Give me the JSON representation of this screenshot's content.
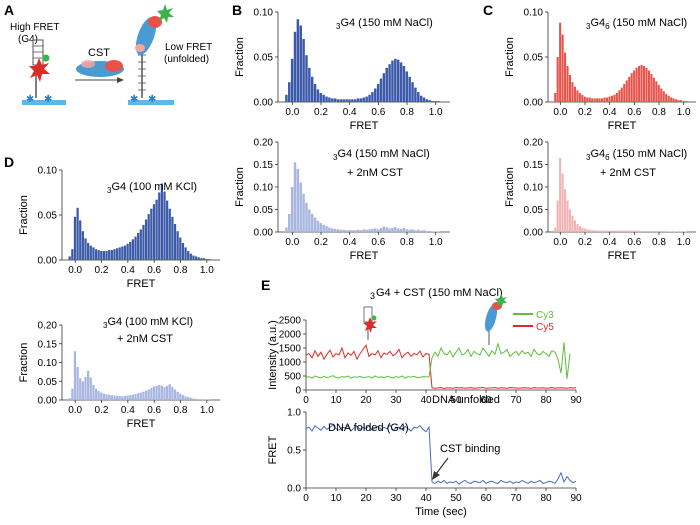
{
  "colors": {
    "blue": "#3d5aa8",
    "blue_light": "#a9b6e0",
    "red": "#e8524a",
    "red_light": "#f3b3b3",
    "cy3": "#5fbf3a",
    "cy5": "#e02a2a",
    "fret_trace": "#4a6bc4",
    "axis": "#333333",
    "arrow": "#333333"
  },
  "panel_A": {
    "letter": "A",
    "high_fret_label": [
      "High FRET",
      "(G4)"
    ],
    "protein_label": "CST",
    "low_fret_label": [
      "Low FRET",
      "(unfolded)"
    ]
  },
  "panel_E": {
    "letter": "E",
    "title_pre": "3",
    "title_main": "G4 + CST (150 mM NaCl)",
    "legend": [
      "Cy3",
      "Cy5"
    ],
    "annotations": {
      "folded": "DNA folded (G4)",
      "unfolded": "DNA unfolded",
      "binding": "CST binding"
    }
  },
  "chart_data": [
    {
      "id": "B_top",
      "panel": "B",
      "type": "bar",
      "title_sub": "3",
      "title_main": "G4 (150 mM NaCl)",
      "title_sup": "",
      "xlabel": "FRET",
      "ylabel": "Fraction",
      "xlim": [
        -0.1,
        1.1
      ],
      "ylim": [
        0,
        0.1
      ],
      "xticks": [
        0.0,
        0.2,
        0.4,
        0.6,
        0.8,
        1.0
      ],
      "yticks": [
        0.0,
        0.05,
        0.1
      ],
      "ytick_labels": [
        "0.00",
        "0.05",
        "0.10"
      ],
      "color": "blue",
      "bin_start": -0.05,
      "bin_width": 0.02,
      "values": [
        0.008,
        0.022,
        0.048,
        0.078,
        0.092,
        0.085,
        0.07,
        0.052,
        0.038,
        0.028,
        0.02,
        0.014,
        0.01,
        0.008,
        0.006,
        0.005,
        0.004,
        0.004,
        0.003,
        0.003,
        0.003,
        0.003,
        0.003,
        0.003,
        0.003,
        0.004,
        0.004,
        0.005,
        0.006,
        0.008,
        0.011,
        0.015,
        0.02,
        0.026,
        0.032,
        0.038,
        0.042,
        0.046,
        0.048,
        0.047,
        0.044,
        0.04,
        0.034,
        0.028,
        0.022,
        0.016,
        0.011,
        0.007,
        0.005,
        0.003,
        0.002,
        0.001,
        0.001,
        0.001,
        0.0
      ]
    },
    {
      "id": "B_bottom",
      "panel": "B",
      "type": "bar",
      "title_sub": "3",
      "title_main": "G4 (150 mM NaCl)",
      "title_sup": "",
      "subtitle": "+ 2nM CST",
      "xlabel": "FRET",
      "ylabel": "Fraction",
      "xlim": [
        -0.1,
        1.1
      ],
      "ylim": [
        0,
        0.2
      ],
      "xticks": [
        0.0,
        0.2,
        0.4,
        0.6,
        0.8,
        1.0
      ],
      "yticks": [
        0.0,
        0.05,
        0.1,
        0.15,
        0.2
      ],
      "ytick_labels": [
        "0.00",
        "0.05",
        "0.10",
        "0.15",
        "0.20"
      ],
      "color": "blue_light",
      "bin_start": -0.05,
      "bin_width": 0.02,
      "values": [
        0.01,
        0.04,
        0.1,
        0.155,
        0.14,
        0.11,
        0.085,
        0.065,
        0.05,
        0.04,
        0.032,
        0.025,
        0.02,
        0.016,
        0.013,
        0.01,
        0.008,
        0.007,
        0.006,
        0.005,
        0.005,
        0.004,
        0.004,
        0.004,
        0.004,
        0.005,
        0.004,
        0.006,
        0.005,
        0.006,
        0.007,
        0.008,
        0.006,
        0.009,
        0.012,
        0.01,
        0.008,
        0.009,
        0.011,
        0.008,
        0.007,
        0.009,
        0.006,
        0.005,
        0.006,
        0.004,
        0.005,
        0.003,
        0.004,
        0.002,
        0.002,
        0.001,
        0.001,
        0.001,
        0.0
      ]
    },
    {
      "id": "C_top",
      "panel": "C",
      "type": "bar",
      "title_sub": "3",
      "title_main": "G4",
      "title_sup": "6",
      "title_rest": " (150 mM NaCl)",
      "xlabel": "FRET",
      "ylabel": "Fraction",
      "xlim": [
        -0.1,
        1.1
      ],
      "ylim": [
        0,
        0.1
      ],
      "xticks": [
        0.0,
        0.2,
        0.4,
        0.6,
        0.8,
        1.0
      ],
      "yticks": [
        0.0,
        0.05,
        0.1
      ],
      "ytick_labels": [
        "0.00",
        "0.05",
        "0.10"
      ],
      "color": "red",
      "bin_start": -0.05,
      "bin_width": 0.02,
      "values": [
        0.01,
        0.05,
        0.088,
        0.075,
        0.055,
        0.04,
        0.03,
        0.022,
        0.017,
        0.013,
        0.01,
        0.008,
        0.006,
        0.005,
        0.005,
        0.004,
        0.004,
        0.004,
        0.004,
        0.004,
        0.005,
        0.005,
        0.006,
        0.007,
        0.008,
        0.01,
        0.013,
        0.016,
        0.02,
        0.024,
        0.028,
        0.032,
        0.035,
        0.038,
        0.04,
        0.041,
        0.04,
        0.038,
        0.035,
        0.031,
        0.027,
        0.023,
        0.019,
        0.015,
        0.012,
        0.009,
        0.007,
        0.005,
        0.004,
        0.003,
        0.002,
        0.002,
        0.001,
        0.001,
        0.0
      ]
    },
    {
      "id": "C_bottom",
      "panel": "C",
      "type": "bar",
      "title_sub": "3",
      "title_main": "G4",
      "title_sup": "6",
      "title_rest": " (150 mM NaCl)",
      "subtitle": "+ 2nM CST",
      "xlabel": "FRET",
      "ylabel": "Fraction",
      "xlim": [
        -0.1,
        1.1
      ],
      "ylim": [
        0,
        0.2
      ],
      "xticks": [
        0.0,
        0.2,
        0.4,
        0.6,
        0.8,
        1.0
      ],
      "yticks": [
        0.0,
        0.05,
        0.1,
        0.15,
        0.2
      ],
      "ytick_labels": [
        "0.00",
        "0.05",
        "0.10",
        "0.15",
        "0.20"
      ],
      "color": "red_light",
      "bin_start": -0.05,
      "bin_width": 0.02,
      "values": [
        0.01,
        0.07,
        0.165,
        0.13,
        0.095,
        0.07,
        0.05,
        0.036,
        0.026,
        0.018,
        0.013,
        0.01,
        0.008,
        0.006,
        0.005,
        0.004,
        0.004,
        0.003,
        0.003,
        0.003,
        0.003,
        0.003,
        0.003,
        0.003,
        0.003,
        0.003,
        0.003,
        0.003,
        0.003,
        0.003,
        0.003,
        0.003,
        0.003,
        0.003,
        0.003,
        0.002,
        0.002,
        0.002,
        0.002,
        0.002,
        0.002,
        0.002,
        0.002,
        0.002,
        0.002,
        0.001,
        0.001,
        0.001,
        0.001,
        0.001,
        0.001,
        0.001,
        0.001,
        0.001,
        0.0
      ]
    },
    {
      "id": "D_top",
      "panel": "D",
      "type": "bar",
      "title_sub": "3",
      "title_main": "G4 (100 mM KCl)",
      "title_sup": "",
      "xlabel": "FRET",
      "ylabel": "Fraction",
      "xlim": [
        -0.1,
        1.1
      ],
      "ylim": [
        0,
        0.1
      ],
      "xticks": [
        0.0,
        0.2,
        0.4,
        0.6,
        0.8,
        1.0
      ],
      "yticks": [
        0.0,
        0.05,
        0.1
      ],
      "ytick_labels": [
        "0.00",
        "0.05",
        "0.10"
      ],
      "color": "blue",
      "bin_start": -0.05,
      "bin_width": 0.02,
      "values": [
        0.004,
        0.012,
        0.048,
        0.058,
        0.044,
        0.032,
        0.024,
        0.019,
        0.016,
        0.014,
        0.012,
        0.011,
        0.01,
        0.01,
        0.01,
        0.011,
        0.011,
        0.012,
        0.013,
        0.014,
        0.015,
        0.016,
        0.018,
        0.02,
        0.023,
        0.026,
        0.03,
        0.034,
        0.039,
        0.045,
        0.051,
        0.057,
        0.062,
        0.067,
        0.075,
        0.085,
        0.076,
        0.066,
        0.057,
        0.048,
        0.04,
        0.032,
        0.025,
        0.019,
        0.014,
        0.01,
        0.007,
        0.005,
        0.004,
        0.003,
        0.002,
        0.002,
        0.001,
        0.001,
        0.0
      ]
    },
    {
      "id": "D_bottom",
      "panel": "D",
      "type": "bar",
      "title_sub": "3",
      "title_main": "G4 (100 mM KCl)",
      "title_sup": "",
      "subtitle": "+ 2nM CST",
      "xlabel": "FRET",
      "ylabel": "Fraction",
      "xlim": [
        -0.1,
        1.1
      ],
      "ylim": [
        0,
        0.2
      ],
      "xticks": [
        0.0,
        0.2,
        0.4,
        0.6,
        0.8,
        1.0
      ],
      "yticks": [
        0.0,
        0.05,
        0.1,
        0.15,
        0.2
      ],
      "ytick_labels": [
        "0.00",
        "0.05",
        "0.10",
        "0.15",
        "0.20"
      ],
      "color": "blue_light",
      "bin_start": -0.05,
      "bin_width": 0.02,
      "values": [
        0.005,
        0.03,
        0.13,
        0.088,
        0.058,
        0.05,
        0.062,
        0.078,
        0.06,
        0.04,
        0.03,
        0.024,
        0.02,
        0.017,
        0.015,
        0.014,
        0.013,
        0.012,
        0.011,
        0.011,
        0.01,
        0.011,
        0.012,
        0.013,
        0.014,
        0.016,
        0.018,
        0.02,
        0.022,
        0.025,
        0.028,
        0.032,
        0.036,
        0.038,
        0.04,
        0.038,
        0.035,
        0.038,
        0.042,
        0.035,
        0.028,
        0.022,
        0.017,
        0.013,
        0.01,
        0.008,
        0.006,
        0.004,
        0.003,
        0.002,
        0.002,
        0.001,
        0.001,
        0.001,
        0.0
      ]
    },
    {
      "id": "E_intensity",
      "panel": "E",
      "type": "line",
      "xlabel": "",
      "ylabel": "Intensity (a.u.)",
      "xlim": [
        0,
        90
      ],
      "ylim": [
        0,
        2500
      ],
      "xticks": [
        0,
        10,
        20,
        30,
        40,
        50,
        60,
        70,
        80,
        90
      ],
      "yticks": [
        0,
        500,
        1000,
        1500,
        2000,
        2500
      ],
      "x_start": 0,
      "x_step": 1,
      "series": [
        {
          "name": "Cy5",
          "color": "cy5",
          "values": [
            1250,
            1300,
            1150,
            1400,
            1200,
            1350,
            1100,
            1280,
            1420,
            1180,
            1300,
            1250,
            1500,
            1150,
            1320,
            1240,
            1380,
            1100,
            1290,
            1450,
            1600,
            1200,
            1300,
            1250,
            1400,
            1150,
            1320,
            1270,
            1380,
            1220,
            1300,
            1450,
            1150,
            1280,
            1350,
            1200,
            1300,
            1260,
            1390,
            1180,
            1300,
            1280,
            80,
            60,
            70,
            90,
            50,
            80,
            70,
            60,
            90,
            70,
            80,
            60,
            75,
            85,
            65,
            70,
            80,
            90,
            60,
            70,
            75,
            85,
            65,
            80,
            70,
            60,
            90,
            80,
            70,
            65,
            75,
            80,
            70,
            60,
            85,
            75,
            70,
            80,
            60,
            70,
            90,
            65,
            75,
            80,
            70,
            60,
            85,
            70,
            80
          ]
        },
        {
          "name": "Cy3",
          "color": "cy3",
          "values": [
            450,
            480,
            420,
            500,
            460,
            430,
            490,
            440,
            470,
            510,
            450,
            430,
            480,
            460,
            500,
            420,
            470,
            450,
            490,
            440,
            460,
            480,
            430,
            500,
            450,
            470,
            440,
            490,
            460,
            430,
            480,
            450,
            500,
            420,
            470,
            460,
            490,
            440,
            450,
            480,
            470,
            460,
            1150,
            1350,
            1200,
            1500,
            1300,
            1250,
            1400,
            1180,
            1350,
            1500,
            1250,
            1300,
            1450,
            1200,
            1380,
            1300,
            1250,
            1500,
            1350,
            1200,
            1400,
            1280,
            1650,
            1300,
            1350,
            1450,
            1200,
            1300,
            1380,
            1250,
            1400,
            1300,
            1350,
            1200,
            1450,
            1300,
            1250,
            1380,
            1300,
            1200,
            1400,
            1350,
            1100,
            600,
            1700,
            400,
            1300
          ]
        }
      ],
      "legend": [
        "Cy3",
        "Cy5"
      ]
    },
    {
      "id": "E_fret",
      "panel": "E",
      "type": "line",
      "xlabel": "Time (sec)",
      "ylabel": "FRET",
      "xlim": [
        0,
        90
      ],
      "ylim": [
        0,
        1.0
      ],
      "xticks": [
        0,
        10,
        20,
        30,
        40,
        50,
        60,
        70,
        80,
        90
      ],
      "yticks": [
        0.0,
        0.5,
        1.0
      ],
      "ytick_labels": [
        "0.0",
        "0.5",
        "1.0"
      ],
      "x_start": 0,
      "x_step": 1,
      "series": [
        {
          "name": "FRET",
          "color": "fret_trace",
          "values": [
            0.78,
            0.8,
            0.75,
            0.82,
            0.79,
            0.76,
            0.81,
            0.77,
            0.8,
            0.83,
            0.78,
            0.76,
            0.8,
            0.79,
            0.82,
            0.75,
            0.79,
            0.81,
            0.77,
            0.8,
            0.78,
            0.82,
            0.76,
            0.79,
            0.81,
            0.77,
            0.8,
            0.78,
            0.83,
            0.76,
            0.79,
            0.8,
            0.77,
            0.81,
            0.78,
            0.75,
            0.8,
            0.79,
            0.82,
            0.77,
            0.74,
            0.8,
            0.08,
            0.06,
            0.09,
            0.07,
            0.1,
            0.06,
            0.08,
            0.07,
            0.09,
            0.05,
            0.08,
            0.1,
            0.07,
            0.06,
            0.09,
            0.08,
            0.07,
            0.1,
            0.06,
            0.08,
            0.09,
            0.07,
            0.06,
            0.1,
            0.08,
            0.07,
            0.09,
            0.06,
            0.08,
            0.07,
            0.1,
            0.08,
            0.06,
            0.09,
            0.07,
            0.08,
            0.1,
            0.06,
            0.07,
            0.09,
            0.08,
            0.06,
            0.12,
            0.2,
            0.08,
            0.15,
            0.1,
            0.07,
            0.09
          ]
        }
      ]
    }
  ]
}
